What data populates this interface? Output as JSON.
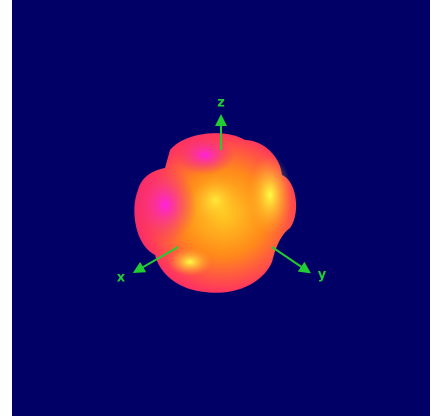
{
  "axes": {
    "z": "z",
    "x": "x",
    "y": "y"
  }
}
